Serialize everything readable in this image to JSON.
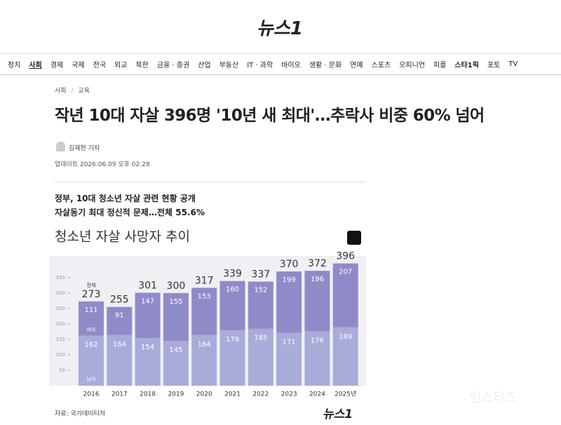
{
  "header": {
    "logo": "뉴스1"
  },
  "nav": {
    "items": [
      "정치",
      "사회",
      "경제",
      "국제",
      "전국",
      "외교",
      "북한",
      "금융 · 증권",
      "산업",
      "부동산",
      "IT · 과학",
      "바이오",
      "생활 · 문화",
      "연예",
      "스포츠",
      "오피니언",
      "피플",
      "스타1픽",
      "포토",
      "TV"
    ]
  },
  "article": {
    "breadcrumb": [
      "사회",
      "교육"
    ],
    "title": "작년 10대 자살 396명 '10년 새 최대'…추락사 비중 60% 넘어",
    "author": "김재현 기자",
    "updated": "업데이트 2026.06.09 오후 02:28",
    "subheads": [
      "정부, 10대 청소년 자살 관련 현황 공개",
      "자살동기 최대 정신적 문제…전체 55.6%"
    ]
  },
  "chart_data": {
    "type": "bar",
    "stacked": true,
    "title": "청소년 자살 사망자 추이",
    "categories": [
      "2016",
      "2017",
      "2018",
      "2019",
      "2020",
      "2021",
      "2022",
      "2023",
      "2024",
      "2025년"
    ],
    "series": [
      {
        "name": "남자",
        "color": "#a9acd9",
        "values": [
          162,
          164,
          154,
          145,
          164,
          179,
          185,
          171,
          176,
          189
        ]
      },
      {
        "name": "여자",
        "color": "#8f8bc9",
        "values": [
          111,
          91,
          147,
          155,
          153,
          160,
          152,
          199,
          196,
          207
        ]
      }
    ],
    "total_name": "전체",
    "totals": [
      273,
      255,
      301,
      300,
      317,
      339,
      337,
      370,
      372,
      396
    ],
    "ylim": [
      0,
      420
    ],
    "yticks": [
      50,
      100,
      150,
      200,
      250,
      300,
      350
    ],
    "source": "자료: 국가데이터처",
    "logo": "뉴스1"
  },
  "watermark": "인스티즈"
}
